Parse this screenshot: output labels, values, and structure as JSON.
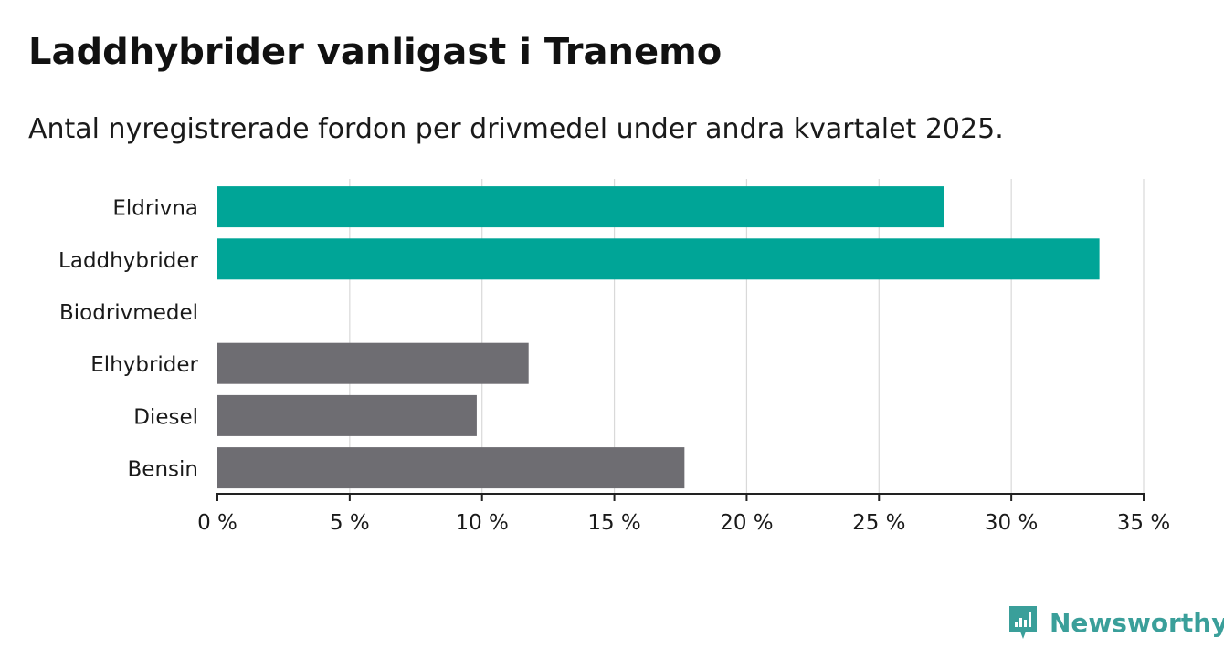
{
  "title": "Laddhybrider vanligast i Tranemo",
  "subtitle": "Antal nyregistrerade fordon per drivmedel under andra kvartalet 2025.",
  "brand": {
    "name": "Newsworthy",
    "color": "#3a9f9a",
    "icon": "newsworthy-logo-icon"
  },
  "colors": {
    "highlight": "#00a597",
    "default": "#6e6d72",
    "grid": "#d9d9d9",
    "axis": "#222222"
  },
  "chart_data": {
    "type": "bar",
    "orientation": "horizontal",
    "categories": [
      "Eldrivna",
      "Laddhybrider",
      "Biodrivmedel",
      "Elhybrider",
      "Diesel",
      "Bensin"
    ],
    "values": [
      27.45,
      33.33,
      0,
      11.76,
      9.8,
      17.65
    ],
    "highlighted": [
      true,
      true,
      false,
      false,
      false,
      false
    ],
    "unit": "%",
    "xlim": [
      0,
      35
    ],
    "xticks": [
      0,
      5,
      10,
      15,
      20,
      25,
      30,
      35
    ],
    "xtick_labels": [
      "0 %",
      "5 %",
      "10 %",
      "15 %",
      "20 %",
      "25 %",
      "30 %",
      "35 %"
    ],
    "grid": true,
    "legend": false
  }
}
